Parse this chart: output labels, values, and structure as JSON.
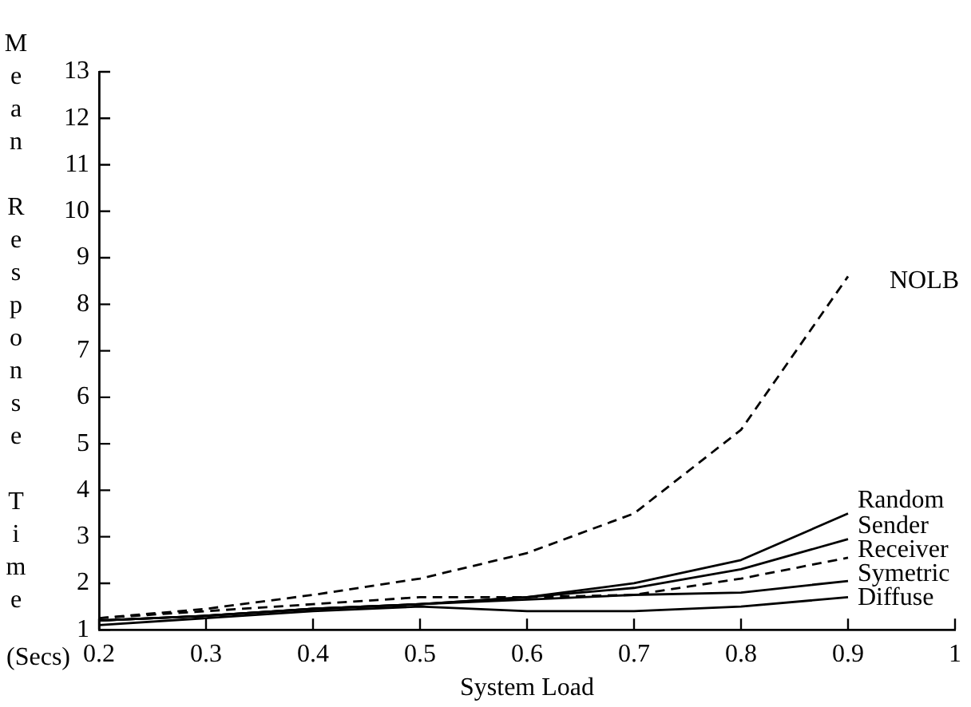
{
  "chart_data": {
    "type": "line",
    "xlabel": "System Load",
    "ylabel": "Mean Response Time (Secs)",
    "x": [
      0.2,
      0.3,
      0.4,
      0.5,
      0.6,
      0.7,
      0.8,
      0.9
    ],
    "series": [
      {
        "name": "NOLB",
        "color": "#000000",
        "line_style": "dashed",
        "values": [
          1.25,
          1.45,
          1.75,
          2.1,
          2.65,
          3.5,
          5.3,
          8.6
        ]
      },
      {
        "name": "Random",
        "color": "#000000",
        "line_style": "solid",
        "values": [
          1.2,
          1.3,
          1.45,
          1.55,
          1.7,
          2.0,
          2.5,
          3.5
        ]
      },
      {
        "name": "Sender",
        "color": "#000000",
        "line_style": "solid",
        "values": [
          1.2,
          1.3,
          1.45,
          1.55,
          1.7,
          1.9,
          2.3,
          2.95
        ]
      },
      {
        "name": "Receiver",
        "color": "#000000",
        "line_style": "dashed",
        "values": [
          1.25,
          1.4,
          1.55,
          1.7,
          1.7,
          1.75,
          2.1,
          2.55
        ]
      },
      {
        "name": "Symetric",
        "color": "#000000",
        "line_style": "solid",
        "values": [
          1.2,
          1.3,
          1.45,
          1.55,
          1.65,
          1.75,
          1.8,
          2.05
        ]
      },
      {
        "name": "Diffuse",
        "color": "#000000",
        "line_style": "solid",
        "values": [
          1.1,
          1.25,
          1.4,
          1.5,
          1.4,
          1.4,
          1.5,
          1.7
        ]
      }
    ],
    "xlim": [
      0.2,
      1
    ],
    "xticks": [
      0.2,
      0.3,
      0.4,
      0.5,
      0.6,
      0.7,
      0.8,
      0.9,
      1
    ],
    "ylim": [
      1,
      13
    ],
    "yticks": [
      1,
      2,
      3,
      4,
      5,
      6,
      7,
      8,
      9,
      10,
      11,
      12,
      13
    ],
    "grid": false,
    "legend": false,
    "marker": "none"
  }
}
